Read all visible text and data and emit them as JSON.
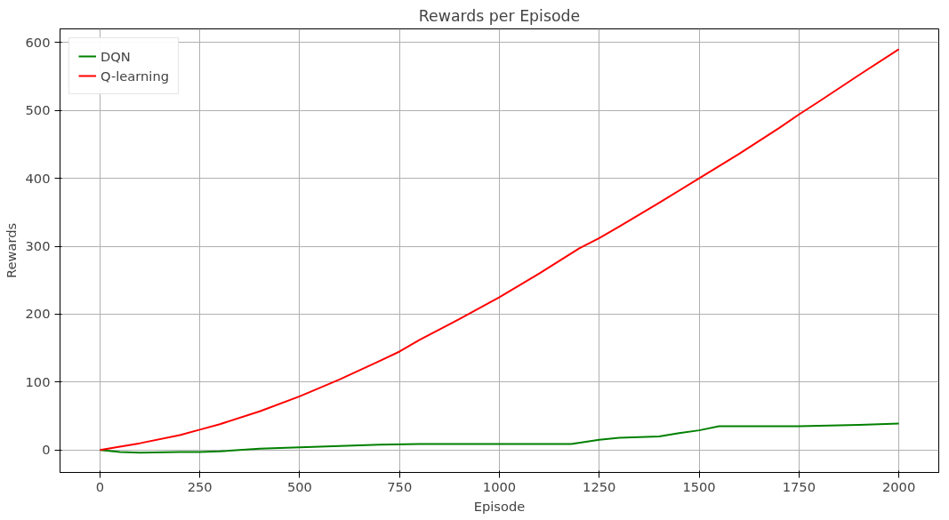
{
  "chart_data": {
    "type": "line",
    "title": "Rewards per Episode",
    "xlabel": "Episode",
    "ylabel": "Rewards",
    "xlim": [
      -100,
      2100
    ],
    "ylim": [
      -33,
      620
    ],
    "xticks": [
      0,
      250,
      500,
      750,
      1000,
      1250,
      1500,
      1750,
      2000
    ],
    "yticks": [
      0,
      100,
      200,
      300,
      400,
      500,
      600
    ],
    "grid": true,
    "legend": "top left",
    "line_style": "solid",
    "series": [
      {
        "name": "DQN",
        "color": "#008000",
        "x": [
          0,
          50,
          100,
          200,
          250,
          300,
          400,
          500,
          600,
          700,
          800,
          900,
          1000,
          1100,
          1180,
          1250,
          1300,
          1350,
          1400,
          1450,
          1500,
          1550,
          1600,
          1750,
          1900,
          2000
        ],
        "values": [
          0,
          -3,
          -4,
          -3,
          -3,
          -2,
          2,
          4,
          6,
          8,
          9,
          9,
          9,
          9,
          9,
          15,
          18,
          19,
          20,
          25,
          29,
          35,
          35,
          35,
          37,
          39
        ]
      },
      {
        "name": "Q-learning",
        "color": "#ff0000",
        "x": [
          0,
          100,
          200,
          250,
          300,
          400,
          500,
          600,
          700,
          750,
          800,
          900,
          1000,
          1100,
          1200,
          1250,
          1300,
          1400,
          1500,
          1600,
          1700,
          1750,
          1800,
          1900,
          2000
        ],
        "values": [
          0,
          10,
          22,
          30,
          38,
          57,
          79,
          104,
          131,
          145,
          162,
          193,
          225,
          260,
          297,
          312,
          329,
          364,
          400,
          436,
          474,
          494,
          513,
          552,
          590
        ]
      }
    ]
  }
}
